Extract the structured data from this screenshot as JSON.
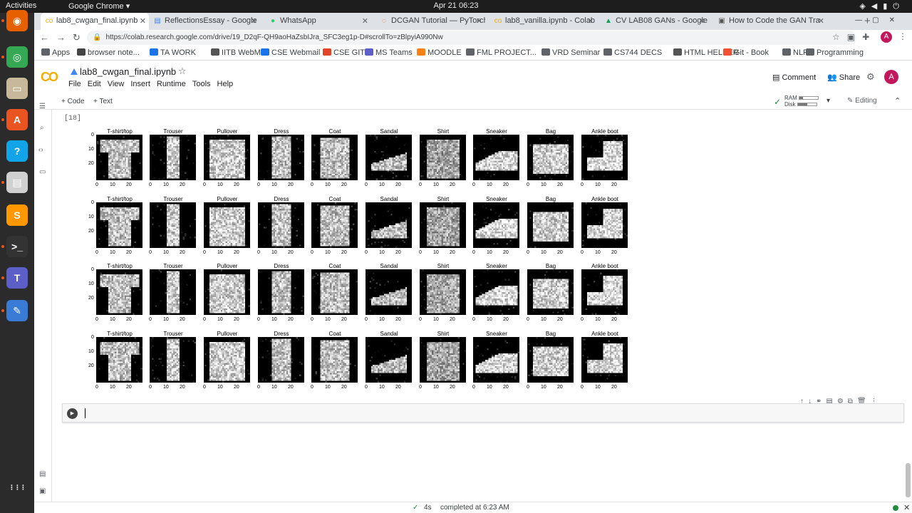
{
  "os": {
    "activities": "Activities",
    "app_menu": "Google Chrome ▾",
    "clock": "Apr 21  06:23",
    "tray_icons": [
      "wifi-icon",
      "volume-icon",
      "battery-icon",
      "power-icon"
    ]
  },
  "dock": {
    "items": [
      {
        "name": "firefox-icon",
        "glyph": "◉",
        "color": "#e66000"
      },
      {
        "name": "chrome-icon",
        "glyph": "◎",
        "color": "#34a853"
      },
      {
        "name": "files-icon",
        "glyph": "▭",
        "color": "#c8b89a"
      },
      {
        "name": "software-icon",
        "glyph": "A",
        "color": "#e95420"
      },
      {
        "name": "help-icon",
        "glyph": "?",
        "color": "#12a4e8"
      },
      {
        "name": "document-viewer-icon",
        "glyph": "▤",
        "color": "#d0d0d0"
      },
      {
        "name": "sublime-text-icon",
        "glyph": "S",
        "color": "#ff9800"
      },
      {
        "name": "terminal-icon",
        "glyph": ">_",
        "color": "#333333"
      },
      {
        "name": "teams-icon",
        "glyph": "T",
        "color": "#5b5fc7"
      },
      {
        "name": "text-editor-icon",
        "glyph": "✎",
        "color": "#3a7bd5"
      },
      {
        "name": "show-apps-icon",
        "glyph": "⋮⋮⋮",
        "color": "#2b2b2b"
      }
    ]
  },
  "browser": {
    "tabs": [
      {
        "title": "lab8_cwgan_final.ipynb",
        "fav": "co",
        "favcolor": "#f9ab00",
        "active": true
      },
      {
        "title": "ReflectionsEssay - Google",
        "fav": "▤",
        "favcolor": "#4285f4"
      },
      {
        "title": "WhatsApp",
        "fav": "●",
        "favcolor": "#25d366"
      },
      {
        "title": "DCGAN Tutorial — PyTorch",
        "fav": "◌",
        "favcolor": "#ee4c2c"
      },
      {
        "title": "lab8_vanilla.ipynb - Colab",
        "fav": "co",
        "favcolor": "#f9ab00"
      },
      {
        "title": "CV LAB08 GANs - Google",
        "fav": "▲",
        "favcolor": "#0f9d58"
      },
      {
        "title": "How to Code the GAN Tra",
        "fav": "▣",
        "favcolor": "#555555"
      }
    ],
    "new_tab": "+",
    "url": "https://colab.research.google.com/drive/19_D2qF-QH9aoHaZsbIJra_SFC3eg1p-D#scrollTo=zBlpyiA990Nw",
    "bookmarks": [
      {
        "label": "Apps",
        "color": "#5f6368"
      },
      {
        "label": "browser note...",
        "color": "#444444"
      },
      {
        "label": "TA WORK",
        "color": "#1a73e8"
      },
      {
        "label": "IITB WebMail",
        "color": "#555555"
      },
      {
        "label": "CSE Webmail",
        "color": "#1a73e8"
      },
      {
        "label": "CSE GIT",
        "color": "#e24329"
      },
      {
        "label": "MS Teams",
        "color": "#5b5fc7"
      },
      {
        "label": "MOODLE",
        "color": "#f98012"
      },
      {
        "label": "FML PROJECT...",
        "color": "#5f6368"
      },
      {
        "label": "VRD Seminar",
        "color": "#5f6368"
      },
      {
        "label": "CS744 DECS",
        "color": "#5f6368"
      },
      {
        "label": "HTML HELPER",
        "color": "#555555"
      },
      {
        "label": "Git - Book",
        "color": "#f05133"
      },
      {
        "label": "NLP",
        "color": "#5f6368"
      },
      {
        "label": "Programming",
        "color": "#5f6368"
      }
    ]
  },
  "colab": {
    "logo": "CO",
    "notebook_title": "lab8_cwgan_final.ipynb",
    "menu": [
      "File",
      "Edit",
      "View",
      "Insert",
      "Runtime",
      "Tools",
      "Help"
    ],
    "comment": "Comment",
    "share": "Share",
    "avatar": "A",
    "add_code": "+ Code",
    "add_text": "+ Text",
    "ram_label": "RAM",
    "disk_label": "Disk",
    "ram_fraction": 0.2,
    "disk_fraction": 0.5,
    "editing": "Editing",
    "execution_count": "[18]",
    "class_labels": [
      "T-shirt/top",
      "Trouser",
      "Pullover",
      "Dress",
      "Coat",
      "Sandal",
      "Shirt",
      "Sneaker",
      "Bag",
      "Ankle boot"
    ],
    "y_ticks": [
      "0",
      "10",
      "20"
    ],
    "x_ticks": [
      "0",
      "10",
      "20"
    ],
    "status": {
      "check": "✓",
      "duration": "4s",
      "message": "completed at 6:23 AM"
    }
  }
}
